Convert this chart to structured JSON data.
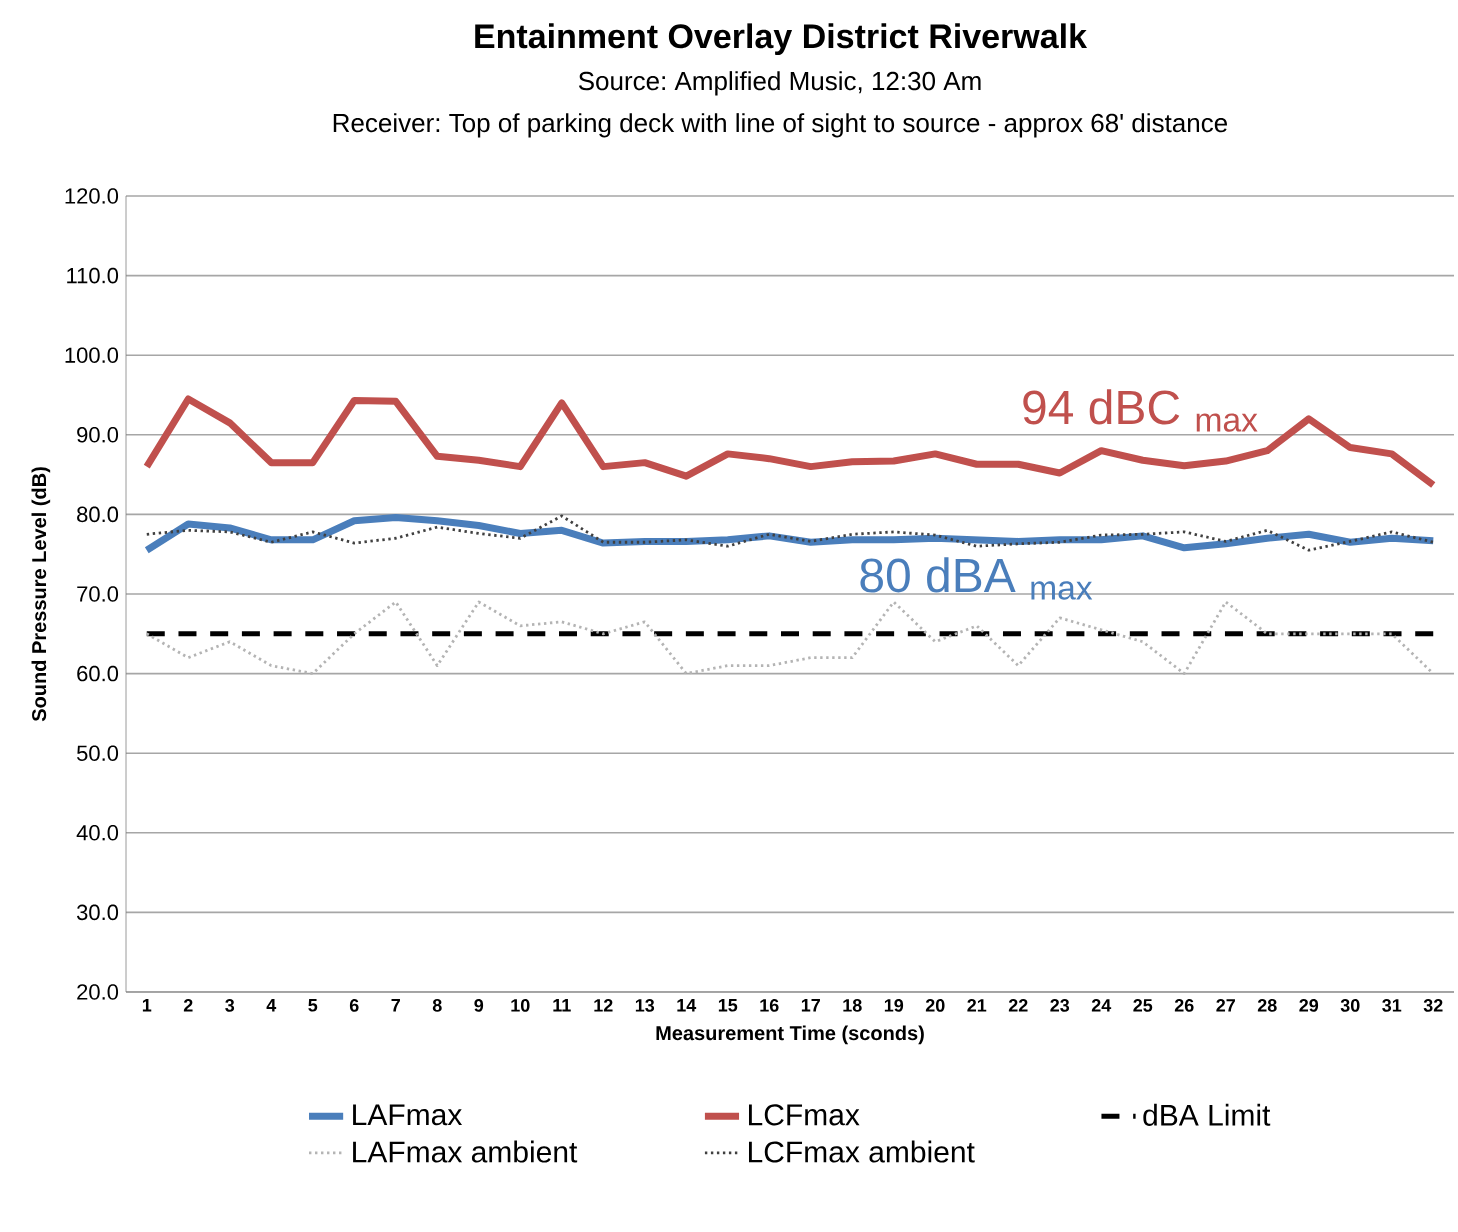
{
  "chart_data": {
    "type": "line",
    "title": "Entainment Overlay District Riverwalk",
    "subtitle": "Source: Amplified Music, 12:30 Am",
    "annotations": [
      "Receiver: Top of parking deck with line of sight to source - approx 68' distance",
      "80 dBA $_{max}$",
      "94 dBC $_{max}$"
    ],
    "xlabel": "Measurement Time (sconds)",
    "ylabel": "Sound Pressure Level (dB)",
    "categories": [
      "1",
      "2",
      "3",
      "4",
      "5",
      "6",
      "7",
      "8",
      "9",
      "10",
      "11",
      "12",
      "13",
      "14",
      "15",
      "16",
      "17",
      "18",
      "19",
      "20",
      "21",
      "22",
      "23",
      "24",
      "25",
      "26",
      "27",
      "28",
      "29",
      "30",
      "31",
      "32"
    ],
    "ylim": [
      20,
      120
    ],
    "yticks": [
      {
        "value": 20,
        "label": "20.0"
      },
      {
        "value": 30,
        "label": "30.0"
      },
      {
        "value": 40,
        "label": "40.0"
      },
      {
        "value": 50,
        "label": "50.0"
      },
      {
        "value": 60,
        "label": "60.0"
      },
      {
        "value": 70,
        "label": "70.0"
      },
      {
        "value": 80,
        "label": "80.0"
      },
      {
        "value": 90,
        "label": "90.0"
      },
      {
        "value": 100,
        "label": "100.0"
      },
      {
        "value": 110,
        "label": "110.0"
      },
      {
        "value": 120,
        "label": "120.0"
      }
    ],
    "grid": "y",
    "legend": "bottom",
    "marker": "none",
    "series": [
      {
        "name": "LAFmax",
        "color": "#4a7ebb",
        "line_style": "solid",
        "values": [
          75.5,
          78.8,
          78.3,
          76.8,
          76.8,
          79.2,
          79.6,
          79.2,
          78.6,
          77.6,
          78,
          76.4,
          76.6,
          76.6,
          76.8,
          77.3,
          76.5,
          76.8,
          76.8,
          77,
          76.8,
          76.6,
          76.8,
          76.8,
          77.3,
          75.8,
          76.3,
          77,
          77.5,
          76.5,
          77,
          76.7
        ]
      },
      {
        "name": "LCFmax",
        "color": "#c0504d",
        "line_style": "solid",
        "values": [
          86,
          94.5,
          91.5,
          86.5,
          86.5,
          94.3,
          94.2,
          87.3,
          86.8,
          86,
          94,
          86,
          86.5,
          84.8,
          87.6,
          87,
          86,
          86.6,
          86.7,
          87.6,
          86.3,
          86.3,
          85.2,
          88,
          86.8,
          86.1,
          86.7,
          88,
          92,
          88.4,
          87.6,
          83.7
        ]
      },
      {
        "name": "dBA Limit",
        "color": "#000000",
        "line_style": "dashed",
        "values": [
          65,
          65,
          65,
          65,
          65,
          65,
          65,
          65,
          65,
          65,
          65,
          65,
          65,
          65,
          65,
          65,
          65,
          65,
          65,
          65,
          65,
          65,
          65,
          65,
          65,
          65,
          65,
          65,
          65,
          65,
          65,
          65
        ]
      },
      {
        "name": "LAFmax ambient",
        "color": "#b4b4b4",
        "line_style": "dotted",
        "values": [
          65,
          62,
          64,
          61,
          60,
          65,
          69,
          61,
          69,
          66,
          66.5,
          65,
          66.5,
          60,
          61,
          61,
          62,
          62,
          69,
          64,
          66,
          61,
          67,
          65.5,
          64,
          60,
          69,
          65,
          65,
          65,
          65,
          60
        ]
      },
      {
        "name": "LCFmax ambient",
        "color": "#404040",
        "line_style": "dotted",
        "values": [
          77.5,
          78,
          77.8,
          76.5,
          77.8,
          76.4,
          77,
          78.4,
          77.6,
          77,
          79.8,
          76.5,
          76.5,
          76.8,
          76,
          77.5,
          76.6,
          77.5,
          77.8,
          77.4,
          76,
          76.3,
          76.5,
          77.4,
          77.5,
          77.8,
          76.6,
          78,
          75.5,
          76.6,
          77.8,
          76.5
        ]
      }
    ]
  }
}
